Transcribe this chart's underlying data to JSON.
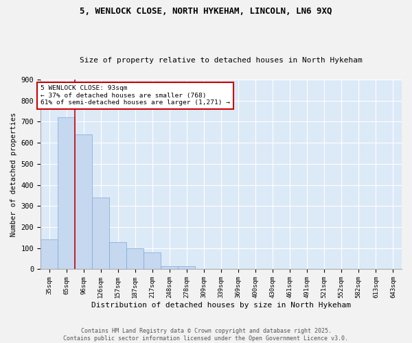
{
  "title1": "5, WENLOCK CLOSE, NORTH HYKEHAM, LINCOLN, LN6 9XQ",
  "title2": "Size of property relative to detached houses in North Hykeham",
  "xlabel": "Distribution of detached houses by size in North Hykeham",
  "ylabel": "Number of detached properties",
  "footer": "Contains HM Land Registry data © Crown copyright and database right 2025.\nContains public sector information licensed under the Open Government Licence v3.0.",
  "bin_labels": [
    "35sqm",
    "65sqm",
    "96sqm",
    "126sqm",
    "157sqm",
    "187sqm",
    "217sqm",
    "248sqm",
    "278sqm",
    "309sqm",
    "339sqm",
    "369sqm",
    "400sqm",
    "430sqm",
    "461sqm",
    "491sqm",
    "521sqm",
    "552sqm",
    "582sqm",
    "613sqm",
    "643sqm"
  ],
  "bar_heights": [
    140,
    720,
    640,
    340,
    130,
    100,
    80,
    15,
    15,
    2,
    0,
    0,
    0,
    0,
    0,
    0,
    0,
    0,
    0,
    0,
    0
  ],
  "bar_color": "#c5d8f0",
  "bar_edge_color": "#7aa8d4",
  "vline_x": 1.5,
  "vline_color": "#cc0000",
  "annotation_line1": "5 WENLOCK CLOSE: 93sqm",
  "annotation_line2": "← 37% of detached houses are smaller (768)",
  "annotation_line3": "61% of semi-detached houses are larger (1,271) →",
  "annotation_box_color": "#cc0000",
  "ylim": [
    0,
    900
  ],
  "yticks": [
    0,
    100,
    200,
    300,
    400,
    500,
    600,
    700,
    800,
    900
  ],
  "plot_bg_color": "#dce9f7",
  "grid_color": "#ffffff",
  "fig_bg_color": "#f2f2f2"
}
